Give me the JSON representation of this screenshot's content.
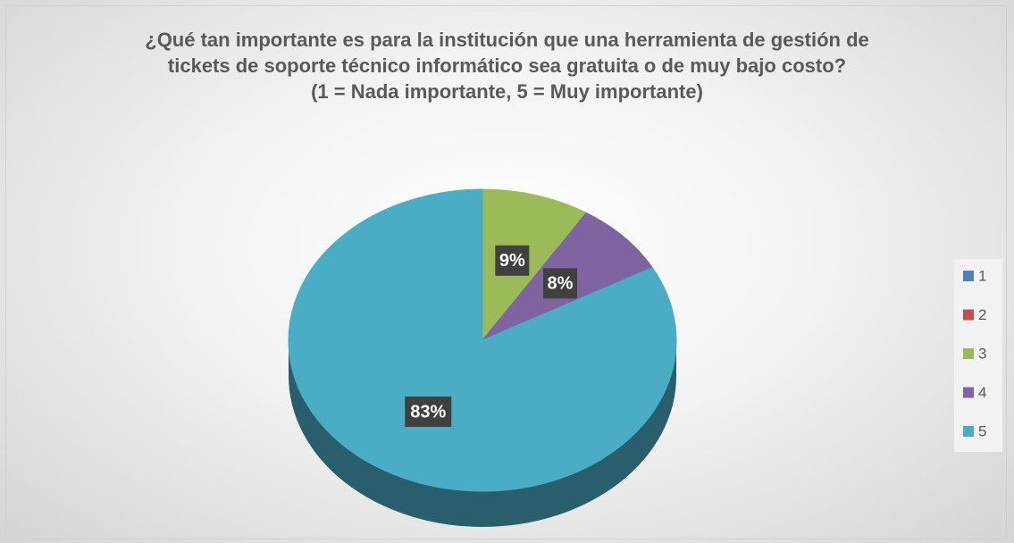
{
  "chart_data": {
    "type": "pie",
    "title": "¿Qué tan importante es para la institución que una herramienta de gestión de tickets de soporte técnico informático sea gratuita o de muy bajo costo?",
    "subtitle": "(1 = Nada importante, 5 = Muy importante)",
    "categories": [
      "1",
      "2",
      "3",
      "4",
      "5"
    ],
    "values": [
      0,
      0,
      9,
      8,
      83
    ],
    "value_labels": [
      null,
      null,
      "9%",
      "8%",
      "83%"
    ],
    "colors": [
      "#4f81bd",
      "#c0504d",
      "#9bbb59",
      "#8064a2",
      "#4bacc6"
    ],
    "legend": "right"
  }
}
